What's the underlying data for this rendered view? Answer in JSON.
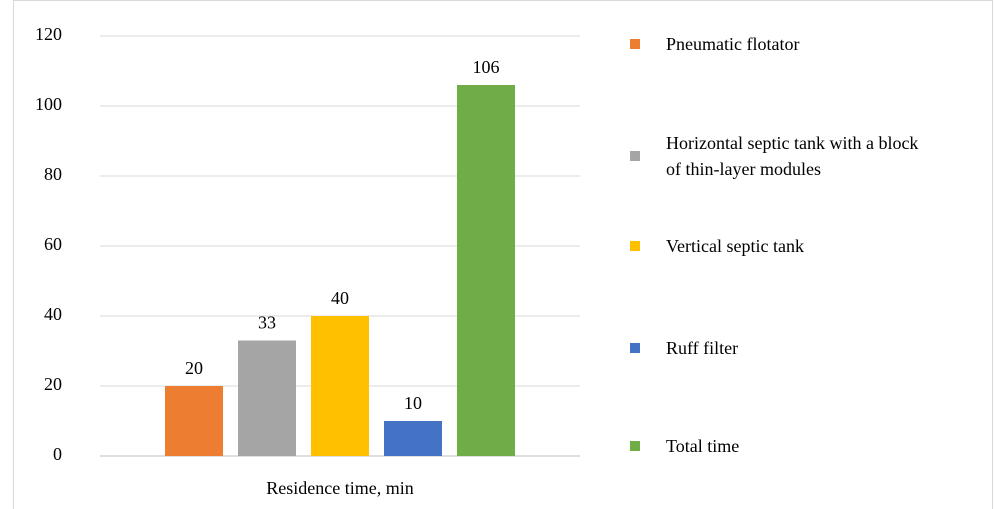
{
  "chart_data": {
    "type": "bar",
    "categories": [
      "Residence time, min"
    ],
    "series": [
      {
        "name": "Pneumatic flotator",
        "color": "#ed7d31",
        "values": [
          20
        ]
      },
      {
        "name": "Horizontal septic tank with a block of thin-layer modules",
        "color": "#a5a5a5",
        "values": [
          33
        ]
      },
      {
        "name": "Vertical septic tank",
        "color": "#ffc000",
        "values": [
          40
        ]
      },
      {
        "name": "Ruff filter",
        "color": "#4472c4",
        "values": [
          10
        ]
      },
      {
        "name": "Total time",
        "color": "#70ad47",
        "values": [
          106
        ]
      }
    ],
    "ylim": [
      0,
      120
    ],
    "yticks": [
      0,
      20,
      40,
      60,
      80,
      100,
      120
    ],
    "grid": true,
    "legend": "right"
  }
}
